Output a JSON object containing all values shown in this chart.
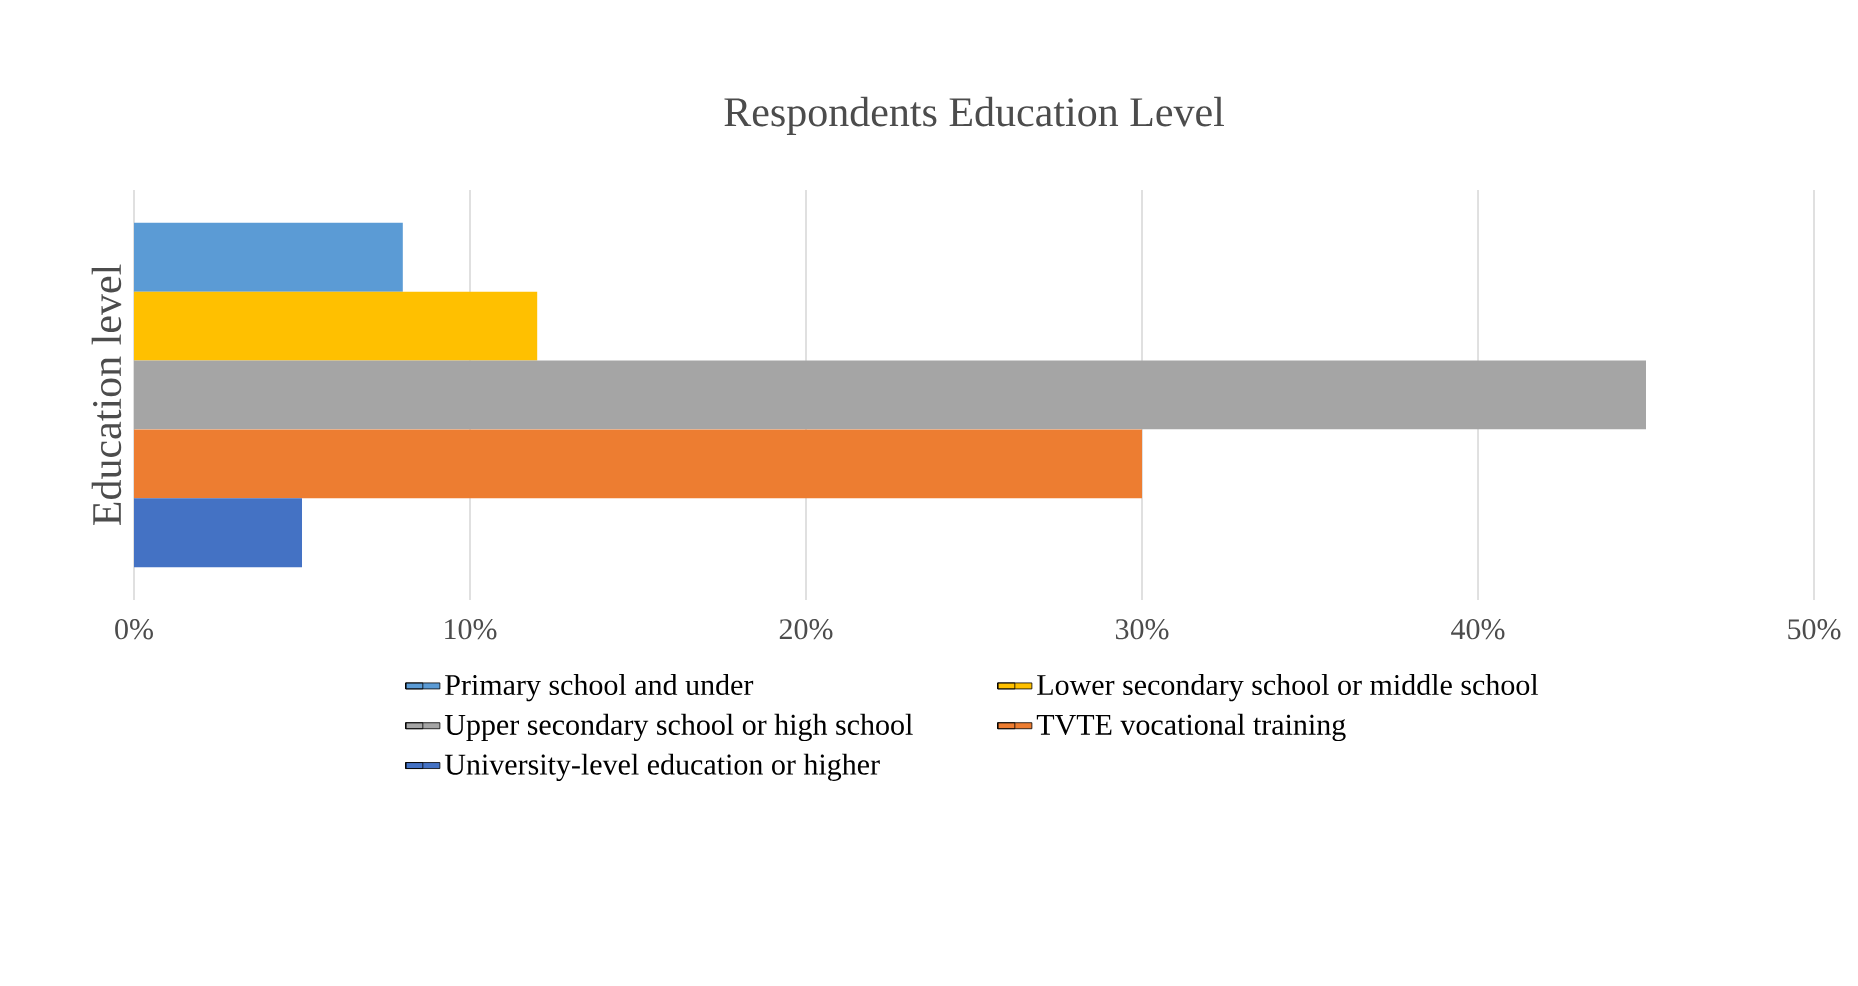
{
  "chart_data": {
    "type": "bar",
    "orientation": "horizontal",
    "title": "Respondents Education Level",
    "ylabel": "Education level",
    "categories": [
      null
    ],
    "series": [
      {
        "name": "Primary school and under",
        "color": "#5b9bd5",
        "values": [
          8
        ]
      },
      {
        "name": "Lower secondary school or middle school",
        "color": "#ffc000",
        "values": [
          12
        ]
      },
      {
        "name": "Upper secondary school or high school",
        "color": "#a5a5a5",
        "values": [
          45
        ]
      },
      {
        "name": "TVTE vocational training",
        "color": "#ed7d31",
        "values": [
          30
        ]
      },
      {
        "name": "University-level education or higher",
        "color": "#4472c4",
        "values": [
          5
        ]
      }
    ],
    "xlim": [
      0,
      50
    ],
    "xticks": [
      {
        "value": 0,
        "label": "0%"
      },
      {
        "value": 10,
        "label": "10%"
      },
      {
        "value": 20,
        "label": "20%"
      },
      {
        "value": 30,
        "label": "30%"
      },
      {
        "value": 40,
        "label": "40%"
      },
      {
        "value": 50,
        "label": "50%"
      }
    ],
    "grid": "x",
    "legend": "bottom"
  }
}
